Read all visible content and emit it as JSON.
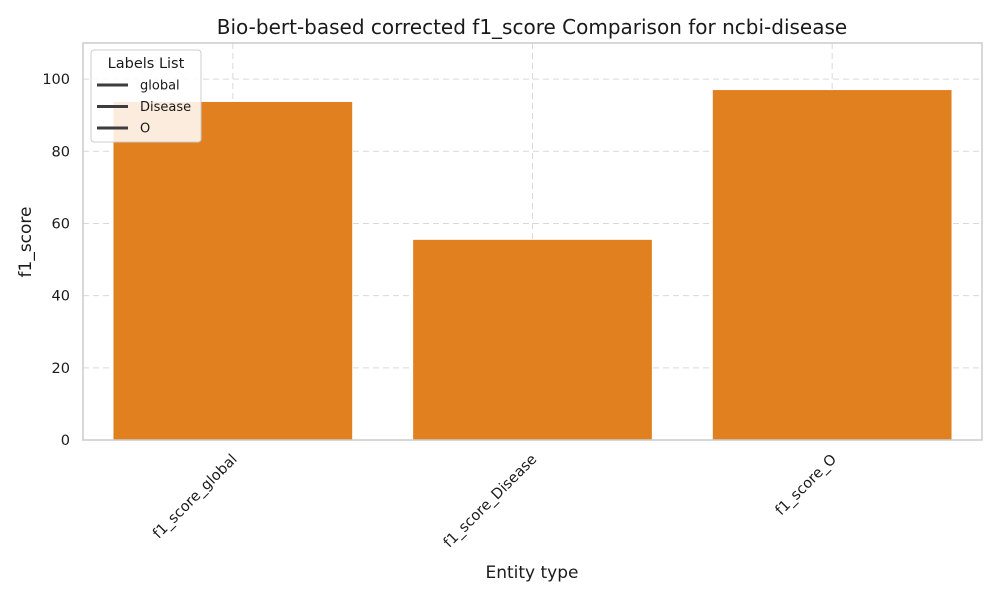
{
  "chart_data": {
    "type": "bar",
    "title": "Bio-bert-based corrected f1_score Comparison for ncbi-disease",
    "xlabel": "Entity type",
    "ylabel": "f1_score",
    "categories": [
      "f1_score_global",
      "f1_score_Disease",
      "f1_score_O"
    ],
    "values": [
      93.8,
      55.6,
      97.1
    ],
    "ylim": [
      0,
      110
    ],
    "yticks": [
      0,
      20,
      40,
      60,
      80,
      100
    ],
    "grid": true,
    "legend": {
      "title": "Labels List",
      "placement": "top-left",
      "entries": [
        "global",
        "Disease",
        "O"
      ]
    },
    "colors": {
      "bar": "#e0801f",
      "grid": "#d9d9d9",
      "spine": "#cccccc",
      "legend_line": "#3d3d3d"
    }
  }
}
